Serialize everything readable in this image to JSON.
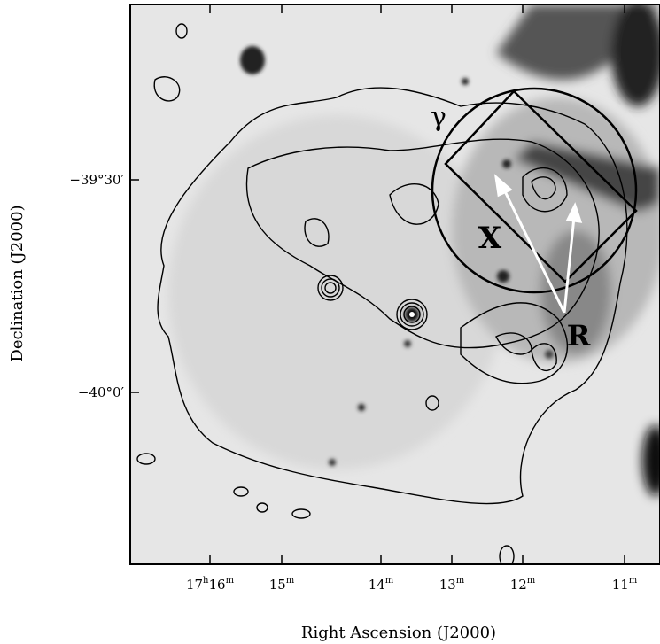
{
  "x_axis": {
    "title": "Right Ascension (J2000)",
    "ticks": [
      {
        "main": "17",
        "sup": "h",
        "main2": "16",
        "sup2": "m"
      },
      {
        "main": "15",
        "sup": "m"
      },
      {
        "main": "14",
        "sup": "m"
      },
      {
        "main": "13",
        "sup": "m"
      },
      {
        "main": "12",
        "sup": "m"
      },
      {
        "main": "11",
        "sup": "m"
      }
    ]
  },
  "y_axis": {
    "title": "Declination (J2000)",
    "ticks": [
      "−39°30′",
      "−40°0′"
    ]
  },
  "annotations": {
    "gamma": "γ",
    "xray": "X",
    "radio": "R"
  }
}
